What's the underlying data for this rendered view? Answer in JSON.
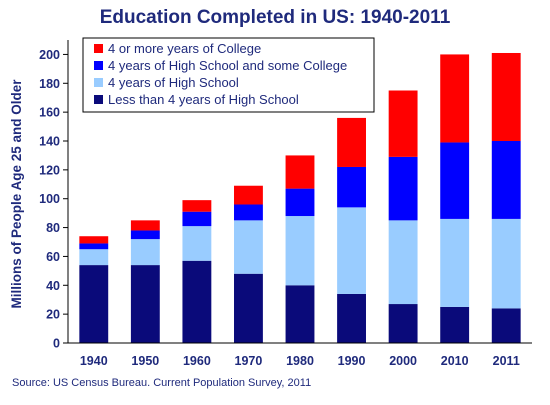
{
  "chart_data": {
    "type": "bar",
    "stacked": true,
    "title": "Education Completed in US: 1940-2011",
    "ylabel": "Millions of People Age 25 and Older",
    "xlabel": "",
    "source": "Source: US Census Bureau. Current Population Survey, 2011",
    "categories": [
      "1940",
      "1950",
      "1960",
      "1970",
      "1980",
      "1990",
      "2000",
      "2010",
      "2011"
    ],
    "ylim": [
      0,
      220
    ],
    "yticks": [
      0,
      20,
      40,
      60,
      80,
      100,
      120,
      140,
      160,
      180,
      200
    ],
    "grid": false,
    "legend_position": "top-left",
    "series": [
      {
        "name": "Less than 4 years of High School",
        "color": "#0a0a7a",
        "values": [
          54,
          54,
          57,
          48,
          40,
          34,
          27,
          25,
          24
        ]
      },
      {
        "name": "4 years of High School",
        "color": "#99ccff",
        "values": [
          11,
          18,
          24,
          37,
          48,
          60,
          58,
          61,
          62
        ]
      },
      {
        "name": "4 years of High School and some College",
        "color": "#0000ff",
        "values": [
          4,
          6,
          10,
          11,
          19,
          28,
          44,
          53,
          54
        ]
      },
      {
        "name": "4 or more years of College",
        "color": "#ff0000",
        "values": [
          5,
          7,
          8,
          13,
          23,
          34,
          46,
          61,
          61
        ]
      }
    ]
  }
}
